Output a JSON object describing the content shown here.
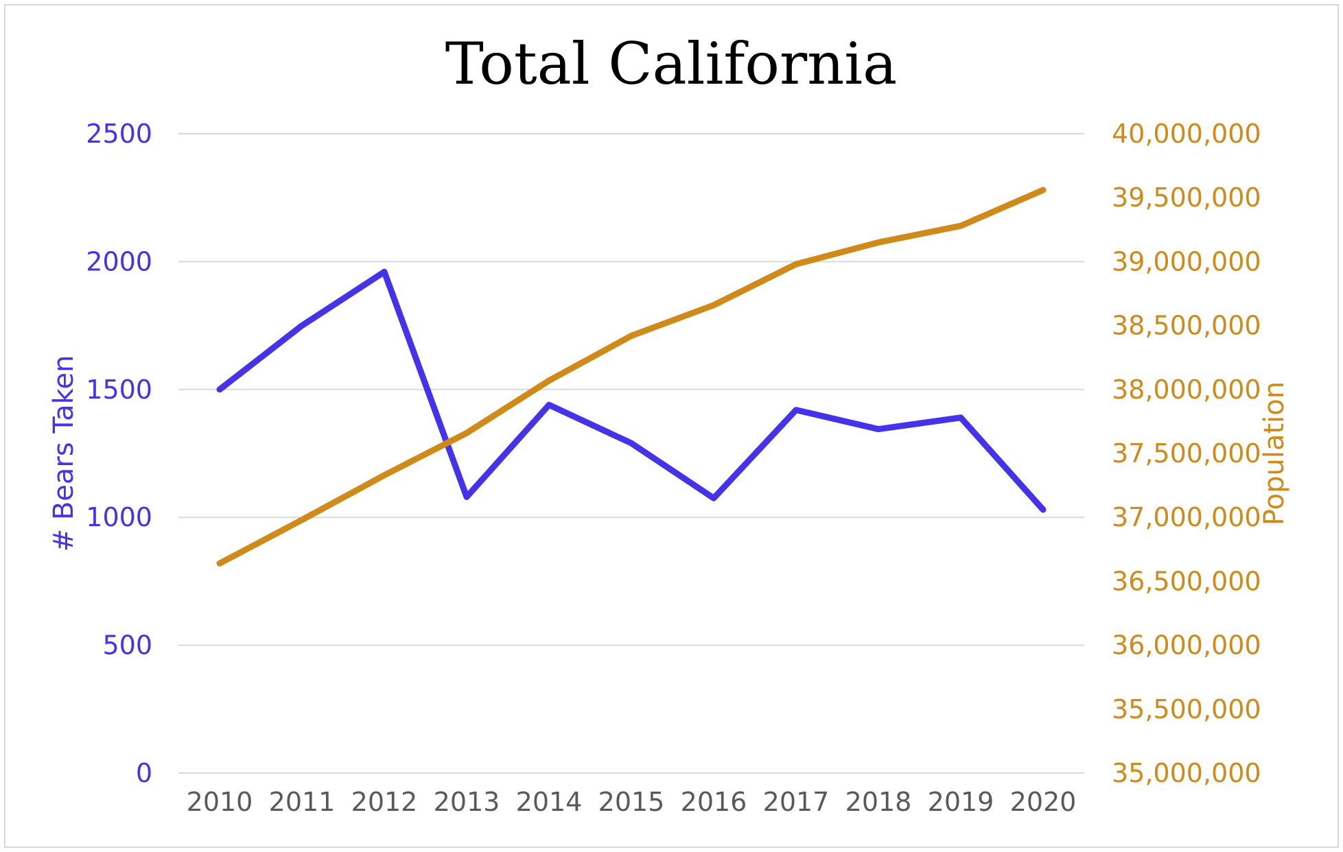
{
  "colors": {
    "bears": "#4433e8",
    "population": "#d08a1a",
    "grid": "#d9d9d9",
    "tick_x": "#595959"
  },
  "chart_data": {
    "type": "line",
    "title": "Total California",
    "xlabel": "",
    "ylabel": "# Bears Taken",
    "y2label": "Population",
    "categories": [
      "2010",
      "2011",
      "2012",
      "2013",
      "2014",
      "2015",
      "2016",
      "2017",
      "2018",
      "2019",
      "2020"
    ],
    "ylim": [
      0,
      2500
    ],
    "y_ticks": [
      0,
      500,
      1000,
      1500,
      2000,
      2500
    ],
    "y_tick_labels": [
      "0",
      "500",
      "1000",
      "1500",
      "2000",
      "2500"
    ],
    "y2lim": [
      35000000,
      40000000
    ],
    "y2_ticks": [
      35000000,
      35500000,
      36000000,
      36500000,
      37000000,
      37500000,
      38000000,
      38500000,
      39000000,
      39500000,
      40000000
    ],
    "y2_tick_labels": [
      "35,000,000",
      "35,500,000",
      "36,000,000",
      "36,500,000",
      "37,000,000",
      "37,500,000",
      "38,000,000",
      "38,500,000",
      "39,000,000",
      "39,500,000",
      "40,000,000"
    ],
    "grid": true,
    "legend": "none",
    "series": [
      {
        "axis": "left",
        "color": "#4433e8",
        "values": [
          1500,
          1750,
          1960,
          1080,
          1440,
          1290,
          1075,
          1420,
          1345,
          1390,
          1030
        ]
      },
      {
        "axis": "right",
        "color": "#d08a1a",
        "values": [
          36640000,
          36980000,
          37330000,
          37660000,
          38070000,
          38420000,
          38660000,
          38980000,
          39150000,
          39280000,
          39560000
        ]
      }
    ]
  }
}
